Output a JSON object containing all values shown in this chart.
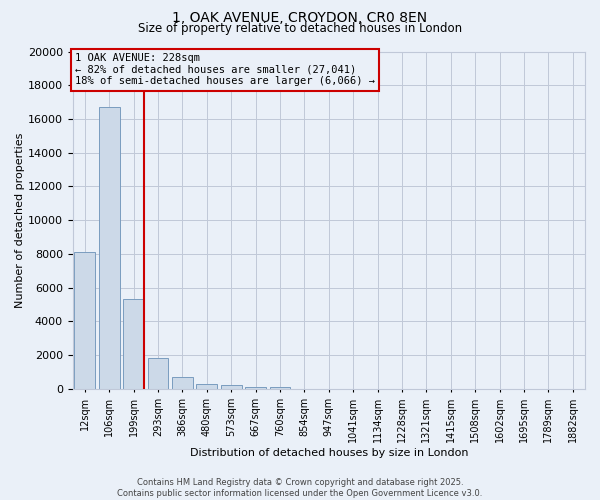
{
  "title": "1, OAK AVENUE, CROYDON, CR0 8EN",
  "subtitle": "Size of property relative to detached houses in London",
  "xlabel": "Distribution of detached houses by size in London",
  "ylabel": "Number of detached properties",
  "footer_line1": "Contains HM Land Registry data © Crown copyright and database right 2025.",
  "footer_line2": "Contains public sector information licensed under the Open Government Licence v3.0.",
  "bar_color": "#ccd9e8",
  "bar_edge_color": "#7a9cbf",
  "grid_color": "#c0c8d8",
  "background_color": "#eaf0f8",
  "annotation_text": "1 OAK AVENUE: 228sqm\n← 82% of detached houses are smaller (27,041)\n18% of semi-detached houses are larger (6,066) →",
  "vline_x_index": 2,
  "vline_color": "#cc0000",
  "categories": [
    "12sqm",
    "106sqm",
    "199sqm",
    "293sqm",
    "386sqm",
    "480sqm",
    "573sqm",
    "667sqm",
    "760sqm",
    "854sqm",
    "947sqm",
    "1041sqm",
    "1134sqm",
    "1228sqm",
    "1321sqm",
    "1415sqm",
    "1508sqm",
    "1602sqm",
    "1695sqm",
    "1789sqm",
    "1882sqm"
  ],
  "values": [
    8100,
    16700,
    5350,
    1850,
    680,
    310,
    200,
    130,
    120,
    0,
    0,
    0,
    0,
    0,
    0,
    0,
    0,
    0,
    0,
    0,
    0
  ],
  "ylim": [
    0,
    20000
  ],
  "yticks": [
    0,
    2000,
    4000,
    6000,
    8000,
    10000,
    12000,
    14000,
    16000,
    18000,
    20000
  ]
}
